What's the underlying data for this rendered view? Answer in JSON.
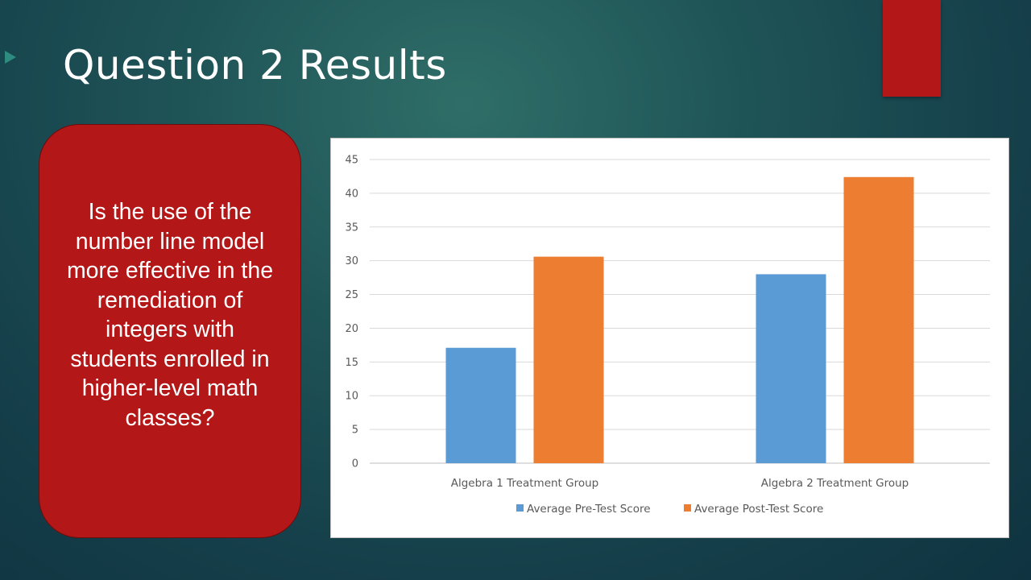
{
  "slide": {
    "title": "Question 2 Results",
    "question": "Is the use of the number line model more effective in the remediation of integers with students enrolled in higher-level math classes?",
    "colors": {
      "accent_red": "#b31717",
      "arrow_teal": "#2d8c7f"
    }
  },
  "chart_data": {
    "type": "bar",
    "title": "",
    "xlabel": "",
    "ylabel": "",
    "categories": [
      "Algebra 1 Treatment Group",
      "Algebra 2 Treatment Group"
    ],
    "series": [
      {
        "name": "Average Pre-Test Score",
        "values": [
          17.1,
          28.0
        ],
        "color": "#5b9bd5"
      },
      {
        "name": "Average Post-Test Score",
        "values": [
          30.6,
          42.4
        ],
        "color": "#ed7d31"
      }
    ],
    "ylim": [
      0,
      45
    ],
    "yticks": [
      0,
      5,
      10,
      15,
      20,
      25,
      30,
      35,
      40,
      45
    ],
    "grid": true,
    "legend_position": "bottom"
  }
}
